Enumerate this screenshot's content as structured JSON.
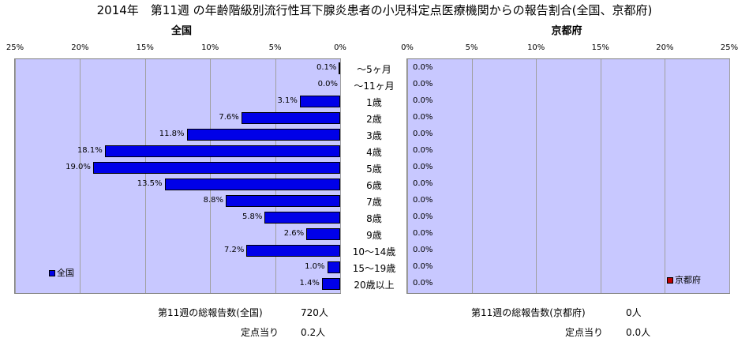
{
  "chart_data": [
    {
      "type": "bar",
      "title": "全国",
      "legend": "全国",
      "legend_placement": "bottom-left",
      "xlim": [
        0,
        25
      ],
      "x_direction": "reversed",
      "ticks": [
        "25%",
        "20%",
        "15%",
        "10%",
        "5%",
        "0%"
      ],
      "categories": [
        "～5ヶ月",
        "～11ヶ月",
        "1歳",
        "2歳",
        "3歳",
        "4歳",
        "5歳",
        "6歳",
        "7歳",
        "8歳",
        "9歳",
        "10～14歳",
        "15～19歳",
        "20歳以上"
      ],
      "values": [
        0.1,
        0.0,
        3.1,
        7.6,
        11.8,
        18.1,
        19.0,
        13.5,
        8.8,
        5.8,
        2.6,
        7.2,
        1.0,
        1.4
      ],
      "labels": [
        "0.1%",
        "0.0%",
        "3.1%",
        "7.6%",
        "11.8%",
        "18.1%",
        "19.0%",
        "13.5%",
        "8.8%",
        "5.8%",
        "2.6%",
        "7.2%",
        "1.0%",
        "1.4%"
      ],
      "color": "#0000e8"
    },
    {
      "type": "bar",
      "title": "京都府",
      "legend": "京都府",
      "legend_placement": "bottom-right",
      "xlim": [
        0,
        25
      ],
      "ticks": [
        "0%",
        "5%",
        "10%",
        "15%",
        "20%",
        "25%"
      ],
      "categories": [
        "～5ヶ月",
        "～11ヶ月",
        "1歳",
        "2歳",
        "3歳",
        "4歳",
        "5歳",
        "6歳",
        "7歳",
        "8歳",
        "9歳",
        "10～14歳",
        "15～19歳",
        "20歳以上"
      ],
      "values": [
        0.0,
        0.0,
        0.0,
        0.0,
        0.0,
        0.0,
        0.0,
        0.0,
        0.0,
        0.0,
        0.0,
        0.0,
        0.0,
        0.0
      ],
      "labels": [
        "0.0%",
        "0.0%",
        "0.0%",
        "0.0%",
        "0.0%",
        "0.0%",
        "0.0%",
        "0.0%",
        "0.0%",
        "0.0%",
        "0.0%",
        "0.0%",
        "0.0%",
        "0.0%"
      ],
      "color": "#c00000"
    }
  ],
  "page": {
    "title": "2014年　第11週 の年齢階級別流行性耳下腺炎患者の小児科定点医療機関からの報告割合(全国、京都府)",
    "left_title": "全国",
    "right_title": "京都府"
  },
  "footer": {
    "left_total_label": "第11週の総報告数(全国)",
    "left_total_value": "720人",
    "left_per_label": "定点当り",
    "left_per_value": "0.2人",
    "right_total_label": "第11週の総報告数(京都府)",
    "right_total_value": "0人",
    "right_per_label": "定点当り",
    "right_per_value": "0.0人"
  }
}
